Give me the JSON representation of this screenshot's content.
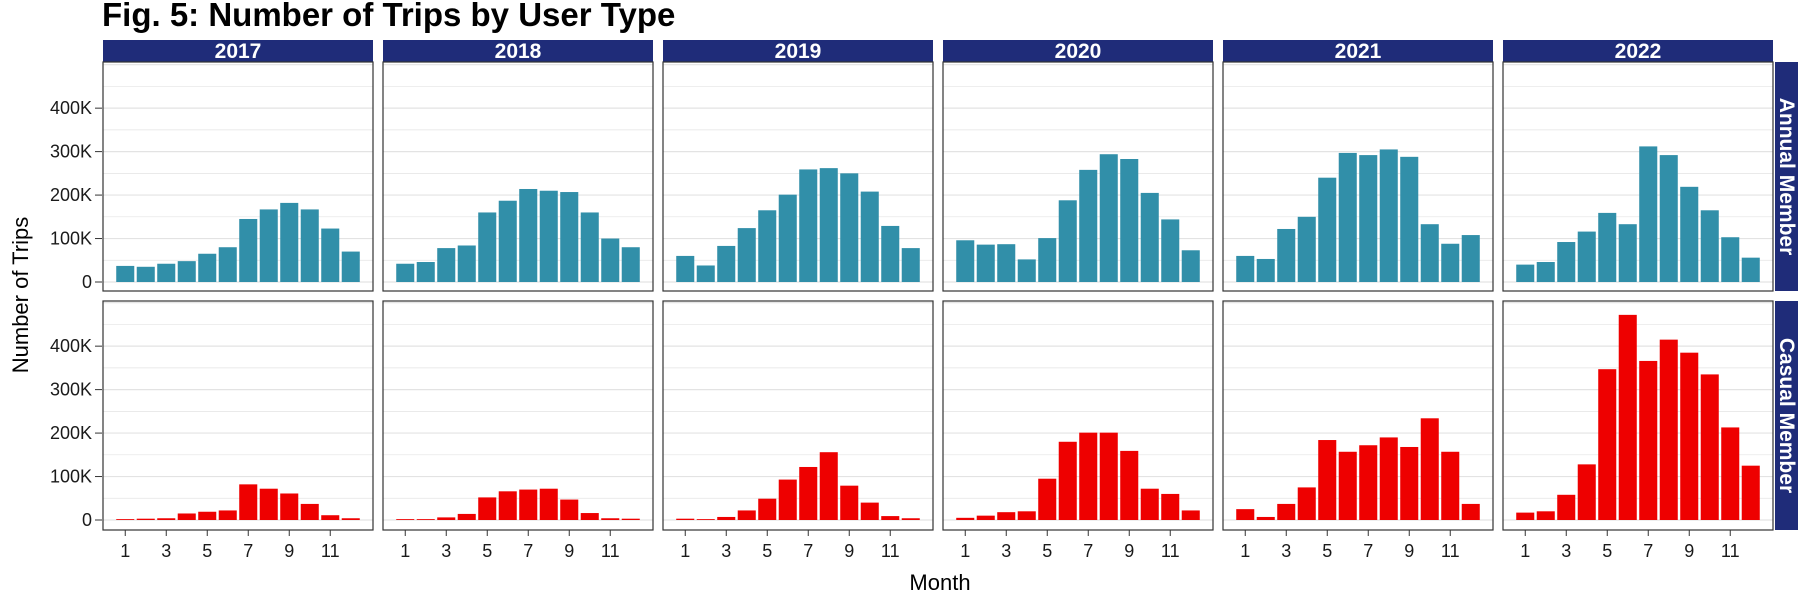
{
  "chart_data": {
    "type": "bar",
    "title": "Fig. 5: Number of Trips by User Type",
    "xlabel": "Month",
    "ylabel": "Number of Trips",
    "ylim": [
      0,
      520000
    ],
    "y_ticks": [
      0,
      100000,
      200000,
      300000,
      400000
    ],
    "y_tick_labels": [
      "0",
      "100K",
      "200K",
      "300K",
      "400K"
    ],
    "x_ticks": [
      1,
      3,
      5,
      7,
      9,
      11
    ],
    "months": [
      1,
      2,
      3,
      4,
      5,
      6,
      7,
      8,
      9,
      10,
      11,
      12
    ],
    "columns": [
      "2017",
      "2018",
      "2019",
      "2020",
      "2021",
      "2022"
    ],
    "rows": [
      {
        "name": "Annual Member",
        "color": "#318fa9",
        "values": {
          "2017": [
            37000,
            35000,
            42000,
            48000,
            65000,
            80000,
            145000,
            167000,
            182000,
            167000,
            123000,
            70000
          ],
          "2018": [
            42000,
            46000,
            78000,
            84000,
            160000,
            187000,
            214000,
            210000,
            207000,
            160000,
            100000,
            80000
          ],
          "2019": [
            60000,
            38000,
            83000,
            124000,
            165000,
            201000,
            259000,
            262000,
            250000,
            208000,
            129000,
            78000
          ],
          "2020": [
            96000,
            86000,
            87000,
            52000,
            101000,
            188000,
            258000,
            294000,
            283000,
            205000,
            144000,
            73000
          ],
          "2021": [
            60000,
            53000,
            122000,
            150000,
            240000,
            297000,
            292000,
            305000,
            288000,
            133000,
            88000,
            108000
          ],
          "2022": [
            40000,
            46000,
            92000,
            116000,
            159000,
            133000,
            312000,
            292000,
            219000,
            165000,
            103000,
            56000
          ]
        }
      },
      {
        "name": "Casual Member",
        "color": "#ee0000",
        "values": {
          "2017": [
            2000,
            3000,
            4000,
            15000,
            19000,
            22000,
            82000,
            72000,
            61000,
            37000,
            11000,
            4000
          ],
          "2018": [
            2000,
            2000,
            6000,
            14000,
            52000,
            66000,
            70000,
            72000,
            47000,
            16000,
            4000,
            3000
          ],
          "2019": [
            3000,
            2000,
            7000,
            22000,
            49000,
            93000,
            122000,
            156000,
            79000,
            40000,
            9000,
            4000
          ],
          "2020": [
            5000,
            10000,
            18000,
            20000,
            95000,
            180000,
            201000,
            201000,
            159000,
            72000,
            60000,
            22000
          ],
          "2021": [
            25000,
            7000,
            37000,
            75000,
            184000,
            157000,
            172000,
            190000,
            168000,
            234000,
            157000,
            37000
          ],
          "2022": [
            17000,
            20000,
            58000,
            128000,
            347000,
            472000,
            366000,
            415000,
            385000,
            335000,
            213000,
            125000
          ]
        }
      }
    ],
    "colors": {
      "strip_background": "#1f2c79",
      "strip_text": "#ffffff",
      "gridline": "#e3e3e3",
      "panel_border": "#333333"
    },
    "grid": true,
    "legend": "none"
  }
}
